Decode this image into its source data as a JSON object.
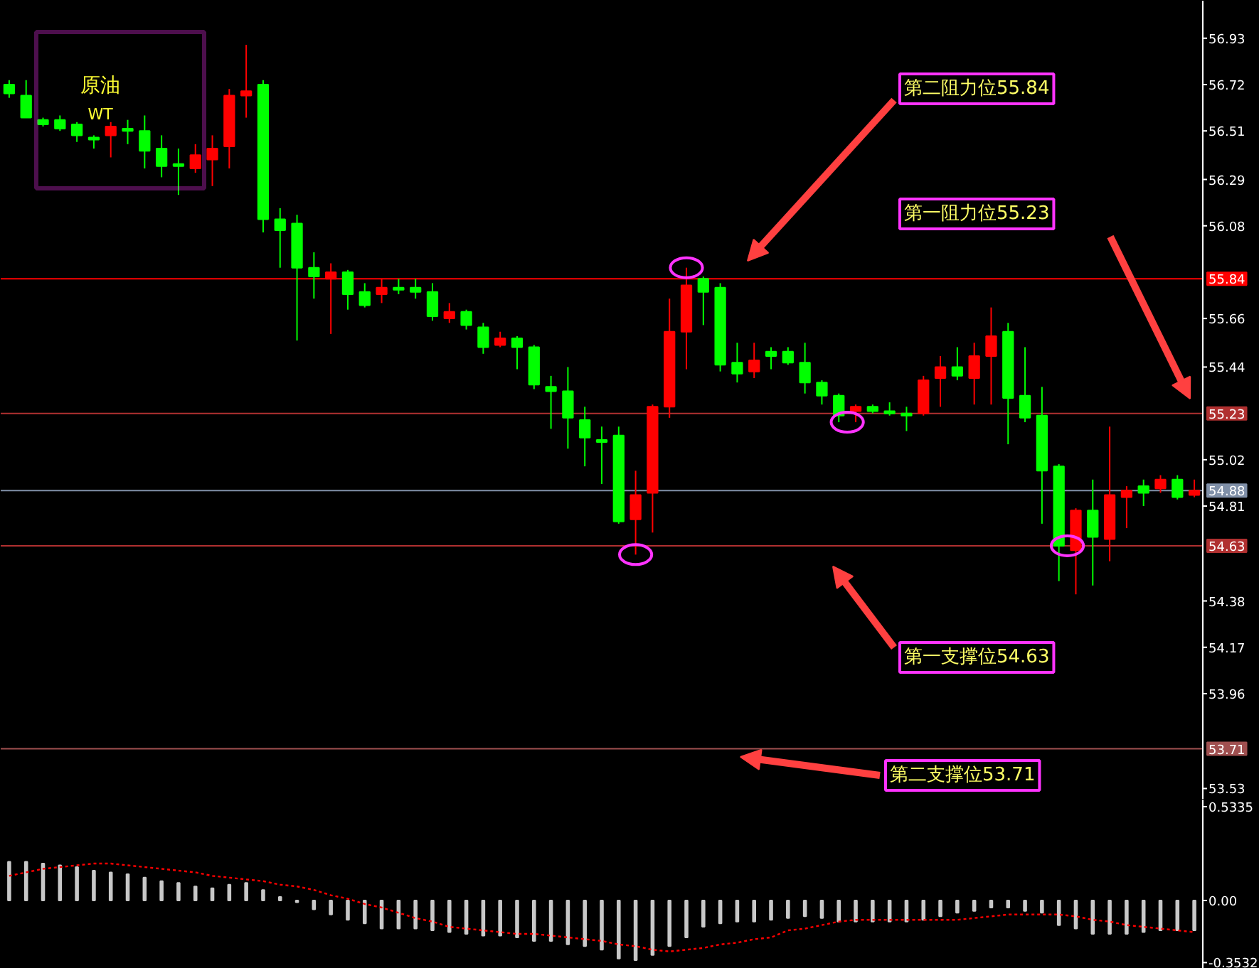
{
  "chart_data": [
    {
      "type": "candlestick",
      "tick_labels": "y",
      "grid": false,
      "categories": [
        null,
        null,
        null,
        null,
        null,
        null,
        null,
        null,
        null,
        null,
        null,
        null,
        null,
        null,
        null,
        null,
        null,
        null,
        null,
        null,
        null,
        null,
        null,
        null,
        null,
        null,
        null,
        null,
        null,
        null,
        null,
        null,
        null,
        null,
        null,
        null,
        null,
        null,
        null,
        null,
        null,
        null,
        null,
        null,
        null,
        null,
        null,
        null,
        null,
        null,
        null,
        null,
        null,
        null,
        null,
        null,
        null,
        null,
        null,
        null,
        null,
        null,
        null,
        null,
        null,
        null,
        null,
        null,
        null,
        null,
        null
      ],
      "ohlc": [
        [
          56.72,
          56.74,
          56.66,
          56.68
        ],
        [
          56.67,
          56.74,
          56.57,
          56.57
        ],
        [
          56.56,
          56.57,
          56.53,
          56.54
        ],
        [
          56.56,
          56.58,
          56.51,
          56.52
        ],
        [
          56.54,
          56.55,
          56.46,
          56.49
        ],
        [
          56.48,
          56.49,
          56.43,
          56.47
        ],
        [
          56.49,
          56.55,
          56.39,
          56.53
        ],
        [
          56.52,
          56.56,
          56.45,
          56.51
        ],
        [
          56.51,
          56.58,
          56.34,
          56.42
        ],
        [
          56.43,
          56.49,
          56.3,
          56.35
        ],
        [
          56.36,
          56.43,
          56.22,
          56.35
        ],
        [
          56.34,
          56.45,
          56.32,
          56.4
        ],
        [
          56.38,
          56.49,
          56.26,
          56.43
        ],
        [
          56.44,
          56.7,
          56.34,
          56.67
        ],
        [
          56.67,
          56.9,
          56.57,
          56.69
        ],
        [
          56.72,
          56.74,
          56.05,
          56.11
        ],
        [
          56.11,
          56.16,
          55.89,
          56.06
        ],
        [
          56.09,
          56.13,
          55.56,
          55.89
        ],
        [
          55.89,
          55.96,
          55.75,
          55.85
        ],
        [
          55.84,
          55.91,
          55.59,
          55.87
        ],
        [
          55.87,
          55.88,
          55.7,
          55.77
        ],
        [
          55.78,
          55.82,
          55.71,
          55.72
        ],
        [
          55.77,
          55.84,
          55.73,
          55.8
        ],
        [
          55.8,
          55.84,
          55.77,
          55.79
        ],
        [
          55.8,
          55.84,
          55.75,
          55.78
        ],
        [
          55.78,
          55.82,
          55.65,
          55.67
        ],
        [
          55.66,
          55.73,
          55.64,
          55.69
        ],
        [
          55.69,
          55.7,
          55.61,
          55.63
        ],
        [
          55.62,
          55.64,
          55.5,
          55.53
        ],
        [
          55.54,
          55.6,
          55.53,
          55.57
        ],
        [
          55.57,
          55.58,
          55.43,
          55.53
        ],
        [
          55.53,
          55.54,
          55.34,
          55.36
        ],
        [
          55.35,
          55.4,
          55.16,
          55.33
        ],
        [
          55.33,
          55.44,
          55.07,
          55.21
        ],
        [
          55.2,
          55.26,
          54.99,
          55.12
        ],
        [
          55.11,
          55.17,
          54.91,
          55.1
        ],
        [
          55.13,
          55.17,
          54.73,
          54.74
        ],
        [
          54.75,
          54.97,
          54.59,
          54.86
        ],
        [
          54.87,
          55.27,
          54.69,
          55.26
        ],
        [
          55.26,
          55.75,
          55.21,
          55.6
        ],
        [
          55.6,
          55.89,
          55.43,
          55.81
        ],
        [
          55.84,
          55.85,
          55.63,
          55.78
        ],
        [
          55.8,
          55.82,
          55.42,
          55.45
        ],
        [
          55.46,
          55.55,
          55.37,
          55.41
        ],
        [
          55.42,
          55.55,
          55.39,
          55.47
        ],
        [
          55.51,
          55.53,
          55.43,
          55.49
        ],
        [
          55.51,
          55.53,
          55.45,
          55.46
        ],
        [
          55.46,
          55.55,
          55.32,
          55.37
        ],
        [
          55.37,
          55.38,
          55.27,
          55.31
        ],
        [
          55.31,
          55.32,
          55.19,
          55.22
        ],
        [
          55.24,
          55.27,
          55.19,
          55.26
        ],
        [
          55.26,
          55.27,
          55.23,
          55.24
        ],
        [
          55.24,
          55.28,
          55.22,
          55.23
        ],
        [
          55.23,
          55.26,
          55.15,
          55.22
        ],
        [
          55.23,
          55.4,
          55.22,
          55.38
        ],
        [
          55.39,
          55.49,
          55.26,
          55.44
        ],
        [
          55.44,
          55.53,
          55.38,
          55.4
        ],
        [
          55.39,
          55.55,
          55.27,
          55.49
        ],
        [
          55.49,
          55.71,
          55.27,
          55.58
        ],
        [
          55.6,
          55.64,
          55.09,
          55.3
        ],
        [
          55.31,
          55.53,
          55.19,
          55.21
        ],
        [
          55.22,
          55.35,
          54.73,
          54.97
        ],
        [
          54.99,
          55.0,
          54.47,
          54.63
        ],
        [
          54.61,
          54.8,
          54.41,
          54.79
        ],
        [
          54.79,
          54.93,
          54.45,
          54.67
        ],
        [
          54.66,
          55.17,
          54.56,
          54.86
        ],
        [
          54.85,
          54.9,
          54.71,
          54.88
        ],
        [
          54.9,
          54.93,
          54.81,
          54.87
        ],
        [
          54.89,
          54.95,
          54.87,
          54.93
        ],
        [
          54.93,
          54.95,
          54.84,
          54.85
        ],
        [
          54.86,
          54.93,
          54.85,
          54.88
        ]
      ],
      "colors": [
        "#00ff00",
        "#00ff00",
        "#00ff00",
        "#00ff00",
        "#00ff00",
        "#00ff00",
        "#ff0000",
        "#00ff00",
        "#00ff00",
        "#00ff00",
        "#00ff00",
        "#ff0000",
        "#ff0000",
        "#ff0000",
        "#ff0000",
        "#00ff00",
        "#00ff00",
        "#00ff00",
        "#00ff00",
        "#ff0000",
        "#00ff00",
        "#00ff00",
        "#ff0000",
        "#00ff00",
        "#00ff00",
        "#00ff00",
        "#ff0000",
        "#00ff00",
        "#00ff00",
        "#ff0000",
        "#00ff00",
        "#00ff00",
        "#00ff00",
        "#00ff00",
        "#00ff00",
        "#00ff00",
        "#00ff00",
        "#ff0000",
        "#ff0000",
        "#ff0000",
        "#ff0000",
        "#00ff00",
        "#00ff00",
        "#00ff00",
        "#ff0000",
        "#00ff00",
        "#00ff00",
        "#00ff00",
        "#00ff00",
        "#00ff00",
        "#ff0000",
        "#00ff00",
        "#00ff00",
        "#00ff00",
        "#ff0000",
        "#ff0000",
        "#00ff00",
        "#ff0000",
        "#ff0000",
        "#00ff00",
        "#00ff00",
        "#00ff00",
        "#00ff00",
        "#ff0000",
        "#00ff00",
        "#ff0000",
        "#ff0000",
        "#00ff00",
        "#ff0000",
        "#00ff00",
        "#ff0000"
      ],
      "ylim": [
        53.48,
        57.1
      ],
      "yticks": [
        56.93,
        56.72,
        56.51,
        56.29,
        56.08,
        55.66,
        55.44,
        55.02,
        54.81,
        54.38,
        54.17,
        53.96,
        53.53
      ],
      "ref_lines": [
        {
          "axis": "y",
          "value": 55.84,
          "label": "55.84",
          "color": "#ff0000"
        },
        {
          "axis": "y",
          "value": 55.23,
          "label": "55.23",
          "color": "#b03030"
        },
        {
          "axis": "y",
          "value": 54.88,
          "label": "54.88",
          "color": "#8090a8"
        },
        {
          "axis": "y",
          "value": 54.63,
          "label": "54.63",
          "color": "#b03030"
        },
        {
          "axis": "y",
          "value": 53.71,
          "label": "53.71",
          "color": "#a05050"
        }
      ],
      "annotations": [
        "原油",
        "WT",
        "第二阻力位55.84",
        "第一阻力位55.23",
        "第一支撑位54.63",
        "第二支撑位53.71"
      ]
    },
    {
      "type": "bar",
      "tick_labels": "y",
      "grid": false,
      "categories": [
        null,
        null,
        null,
        null,
        null,
        null,
        null,
        null,
        null,
        null,
        null,
        null,
        null,
        null,
        null,
        null,
        null,
        null,
        null,
        null,
        null,
        null,
        null,
        null,
        null,
        null,
        null,
        null,
        null,
        null,
        null,
        null,
        null,
        null,
        null,
        null,
        null,
        null,
        null,
        null,
        null,
        null,
        null,
        null,
        null,
        null,
        null,
        null,
        null,
        null,
        null,
        null,
        null,
        null,
        null,
        null,
        null,
        null,
        null,
        null,
        null,
        null,
        null,
        null,
        null,
        null,
        null,
        null,
        null,
        null,
        null
      ],
      "series": [
        {
          "color": "#c8c8c8",
          "values": [
            0.22,
            0.22,
            0.21,
            0.2,
            0.19,
            0.17,
            0.16,
            0.15,
            0.13,
            0.11,
            0.1,
            0.08,
            0.07,
            0.09,
            0.1,
            0.06,
            0.02,
            -0.01,
            -0.05,
            -0.08,
            -0.11,
            -0.13,
            -0.16,
            -0.16,
            -0.16,
            -0.17,
            -0.18,
            -0.19,
            -0.2,
            -0.2,
            -0.21,
            -0.23,
            -0.23,
            -0.25,
            -0.26,
            -0.28,
            -0.33,
            -0.34,
            -0.31,
            -0.26,
            -0.21,
            -0.15,
            -0.13,
            -0.12,
            -0.12,
            -0.11,
            -0.1,
            -0.09,
            -0.1,
            -0.12,
            -0.12,
            -0.12,
            -0.12,
            -0.12,
            -0.11,
            -0.09,
            -0.07,
            -0.06,
            -0.04,
            -0.04,
            -0.06,
            -0.07,
            -0.14,
            -0.16,
            -0.19,
            -0.19,
            -0.19,
            -0.18,
            -0.17,
            -0.17,
            -0.17
          ]
        }
      ],
      "ylim": [
        -0.388,
        0.574
      ],
      "yticks": [
        0.5335,
        {
          "value": 0,
          "label": "0.00"
        },
        -0.3532
      ]
    },
    {
      "type": "line",
      "tick_labels": false,
      "line_style": "dotted",
      "categories": [
        null,
        null,
        null,
        null,
        null,
        null,
        null,
        null,
        null,
        null,
        null,
        null,
        null,
        null,
        null,
        null,
        null,
        null,
        null,
        null,
        null,
        null,
        null,
        null,
        null,
        null,
        null,
        null,
        null,
        null,
        null,
        null,
        null,
        null,
        null,
        null,
        null,
        null,
        null,
        null,
        null,
        null,
        null,
        null,
        null,
        null,
        null,
        null,
        null,
        null,
        null,
        null,
        null,
        null,
        null,
        null,
        null,
        null,
        null,
        null,
        null,
        null,
        null,
        null,
        null,
        null,
        null,
        null,
        null,
        null,
        null
      ],
      "series": [
        {
          "color": "#ff0000",
          "values": [
            0.14,
            0.16,
            0.18,
            0.19,
            0.2,
            0.21,
            0.21,
            0.2,
            0.19,
            0.18,
            0.17,
            0.16,
            0.14,
            0.13,
            0.12,
            0.11,
            0.09,
            0.08,
            0.06,
            0.03,
            0.01,
            -0.02,
            -0.04,
            -0.07,
            -0.1,
            -0.12,
            -0.15,
            -0.16,
            -0.17,
            -0.18,
            -0.19,
            -0.19,
            -0.2,
            -0.21,
            -0.22,
            -0.23,
            -0.25,
            -0.26,
            -0.28,
            -0.29,
            -0.28,
            -0.27,
            -0.25,
            -0.24,
            -0.22,
            -0.21,
            -0.17,
            -0.16,
            -0.14,
            -0.12,
            -0.11,
            -0.11,
            -0.11,
            -0.11,
            -0.11,
            -0.11,
            -0.11,
            -0.1,
            -0.09,
            -0.08,
            -0.08,
            -0.08,
            -0.08,
            -0.09,
            -0.11,
            -0.12,
            -0.14,
            -0.15,
            -0.16,
            -0.17,
            -0.18
          ]
        }
      ],
      "ylim": [
        -0.388,
        0.574
      ]
    }
  ]
}
